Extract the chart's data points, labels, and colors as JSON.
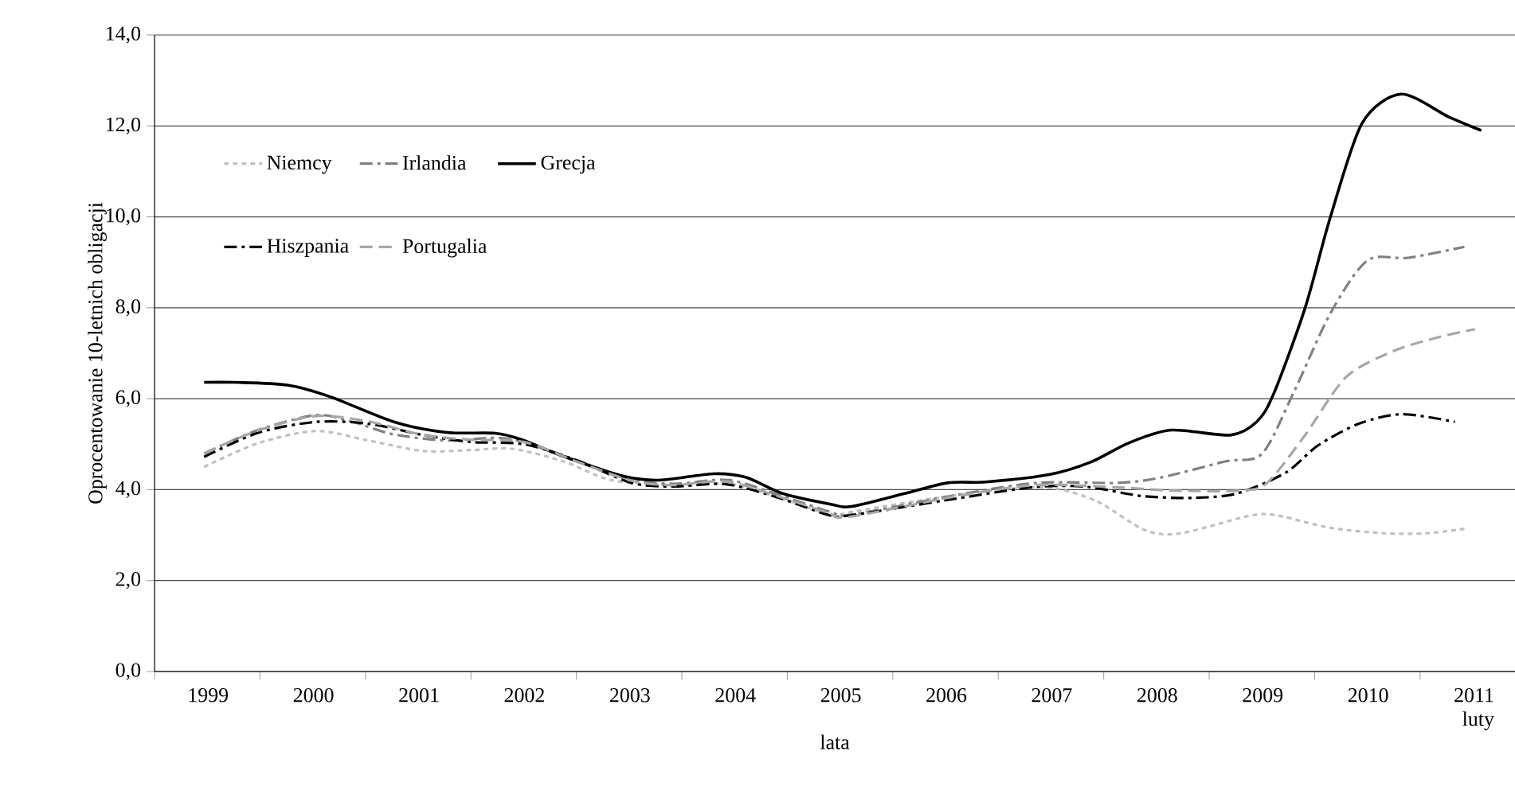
{
  "chart_data": {
    "type": "line",
    "xlabel": "lata",
    "ylabel": "Oprocentowanie 10-letnich obligacji",
    "xlim": [
      1999,
      2011.9
    ],
    "ylim": [
      0,
      14
    ],
    "xticks": [
      {
        "value": 1999,
        "label": null
      },
      {
        "value": 2000,
        "label": null
      },
      {
        "value": 2001,
        "label": null
      },
      {
        "value": 2002,
        "label": null
      },
      {
        "value": 2003,
        "label": null
      },
      {
        "value": 2004,
        "label": null
      },
      {
        "value": 2005,
        "label": null
      },
      {
        "value": 2006,
        "label": null
      },
      {
        "value": 2007,
        "label": null
      },
      {
        "value": 2008,
        "label": null
      },
      {
        "value": 2009,
        "label": null
      },
      {
        "value": 2010,
        "label": null
      },
      {
        "value": 2011,
        "label": null
      },
      {
        "value": 1999.5,
        "label": "1999"
      },
      {
        "value": 2000.5,
        "label": "2000"
      },
      {
        "value": 2001.5,
        "label": "2001"
      },
      {
        "value": 2002.5,
        "label": "2002"
      },
      {
        "value": 2003.5,
        "label": "2003"
      },
      {
        "value": 2004.5,
        "label": "2004"
      },
      {
        "value": 2005.5,
        "label": "2005"
      },
      {
        "value": 2006.5,
        "label": "2006"
      },
      {
        "value": 2007.5,
        "label": "2007"
      },
      {
        "value": 2008.5,
        "label": "2008"
      },
      {
        "value": 2009.5,
        "label": "2009"
      },
      {
        "value": 2010.5,
        "label": "2010"
      },
      {
        "value": 2011.5,
        "label": "2011 luty"
      }
    ],
    "yticks": [
      {
        "value": 0,
        "label": "0,0"
      },
      {
        "value": 2,
        "label": "2,0"
      },
      {
        "value": 4,
        "label": "4,0"
      },
      {
        "value": 6,
        "label": "6,0"
      },
      {
        "value": 8,
        "label": "8,0"
      },
      {
        "value": 10,
        "label": "10,0"
      },
      {
        "value": 12,
        "label": "12,0"
      },
      {
        "value": 14,
        "label": "14,0"
      }
    ],
    "grid": "y",
    "legend": "top left",
    "marker": "none",
    "series": [
      {
        "name": "Niemcy",
        "color": "#c0c0c0",
        "line_style": "dotted",
        "x": [
          1999.47,
          1999.98,
          2000.53,
          2001.03,
          2001.55,
          2002.0,
          2002.39,
          2002.88,
          2003.33,
          2003.94,
          2004.45,
          2004.95,
          2005.41,
          2005.61,
          2006.36,
          2007.12,
          2007.53,
          2007.94,
          2008.39,
          2008.73,
          2009.39,
          2009.65,
          2010.15,
          2010.67,
          2011.06,
          2011.42
        ],
        "values": [
          4.5,
          5.02,
          5.29,
          5.08,
          4.85,
          4.87,
          4.9,
          4.62,
          4.21,
          4.09,
          4.13,
          3.8,
          3.45,
          3.51,
          3.8,
          4.02,
          4.03,
          3.74,
          3.11,
          3.04,
          3.43,
          3.43,
          3.16,
          3.04,
          3.04,
          3.14
        ]
      },
      {
        "name": "Irlandia",
        "color": "#808080",
        "line_style": "dashdot",
        "x": [
          1999.47,
          1999.98,
          2000.53,
          2000.88,
          2001.26,
          2001.77,
          2002.23,
          2002.53,
          2003.03,
          2003.55,
          2003.94,
          2004.45,
          2004.95,
          2005.41,
          2005.61,
          2006.62,
          2007.38,
          2008.14,
          2008.55,
          2009.15,
          2009.5,
          2009.8,
          2010.15,
          2010.5,
          2010.89,
          2011.42
        ],
        "values": [
          4.79,
          5.31,
          5.64,
          5.49,
          5.22,
          5.08,
          5.14,
          5.03,
          4.62,
          4.21,
          4.13,
          4.21,
          3.86,
          3.51,
          3.45,
          3.89,
          4.15,
          4.15,
          4.27,
          4.62,
          4.79,
          6.13,
          7.88,
          9.04,
          9.1,
          9.34
        ]
      },
      {
        "name": "Grecja",
        "color": "#000000",
        "line_style": "solid",
        "x": [
          1999.47,
          1999.76,
          2000.26,
          2000.67,
          2001.27,
          2001.77,
          2002.23,
          2002.48,
          2002.88,
          2003.44,
          2003.79,
          2004.3,
          2004.61,
          2004.95,
          2005.41,
          2005.61,
          2006.12,
          2006.52,
          2006.88,
          2007.48,
          2007.88,
          2008.24,
          2008.64,
          2009.2,
          2009.45,
          2009.61,
          2009.91,
          2010.15,
          2010.45,
          2010.82,
          2011.27,
          2011.58
        ],
        "values": [
          6.36,
          6.36,
          6.3,
          6.04,
          5.49,
          5.26,
          5.24,
          5.1,
          4.73,
          4.3,
          4.21,
          4.35,
          4.27,
          3.92,
          3.68,
          3.63,
          3.92,
          4.15,
          4.17,
          4.33,
          4.61,
          5.03,
          5.31,
          5.2,
          5.49,
          6.1,
          8.0,
          10.0,
          12.06,
          12.7,
          12.2,
          11.9
        ]
      },
      {
        "name": "Hiszpania",
        "color": "#000000",
        "line_style": "dashdot",
        "x": [
          1999.47,
          1999.98,
          2000.53,
          2001.03,
          2001.55,
          2002.0,
          2002.5,
          2003.0,
          2003.52,
          2003.91,
          2004.42,
          2004.92,
          2005.38,
          2005.58,
          2006.59,
          2007.35,
          2007.85,
          2008.36,
          2008.86,
          2009.27,
          2009.73,
          2010.03,
          2010.42,
          2010.83,
          2011.33
        ],
        "values": [
          4.72,
          5.25,
          5.49,
          5.45,
          5.2,
          5.05,
          5.0,
          4.65,
          4.15,
          4.07,
          4.12,
          3.82,
          3.45,
          3.43,
          3.8,
          4.06,
          4.06,
          3.86,
          3.82,
          3.92,
          4.38,
          4.97,
          5.45,
          5.66,
          5.49
        ]
      },
      {
        "name": "Portugalia",
        "color": "#a6a6a6",
        "line_style": "dashed",
        "x": [
          1999.47,
          1999.98,
          2000.53,
          2001.03,
          2001.55,
          2002.0,
          2002.5,
          2003.0,
          2003.52,
          2003.91,
          2004.42,
          2004.92,
          2005.38,
          2005.58,
          2006.59,
          2007.35,
          2008.14,
          2008.64,
          2009.3,
          2009.55,
          2009.91,
          2010.3,
          2010.76,
          2011.17,
          2011.52
        ],
        "values": [
          4.8,
          5.3,
          5.62,
          5.5,
          5.2,
          5.1,
          5.05,
          4.62,
          4.2,
          4.1,
          4.18,
          3.85,
          3.5,
          3.4,
          3.85,
          4.1,
          4.05,
          3.98,
          3.98,
          4.15,
          5.2,
          6.48,
          7.06,
          7.35,
          7.53
        ]
      }
    ]
  }
}
